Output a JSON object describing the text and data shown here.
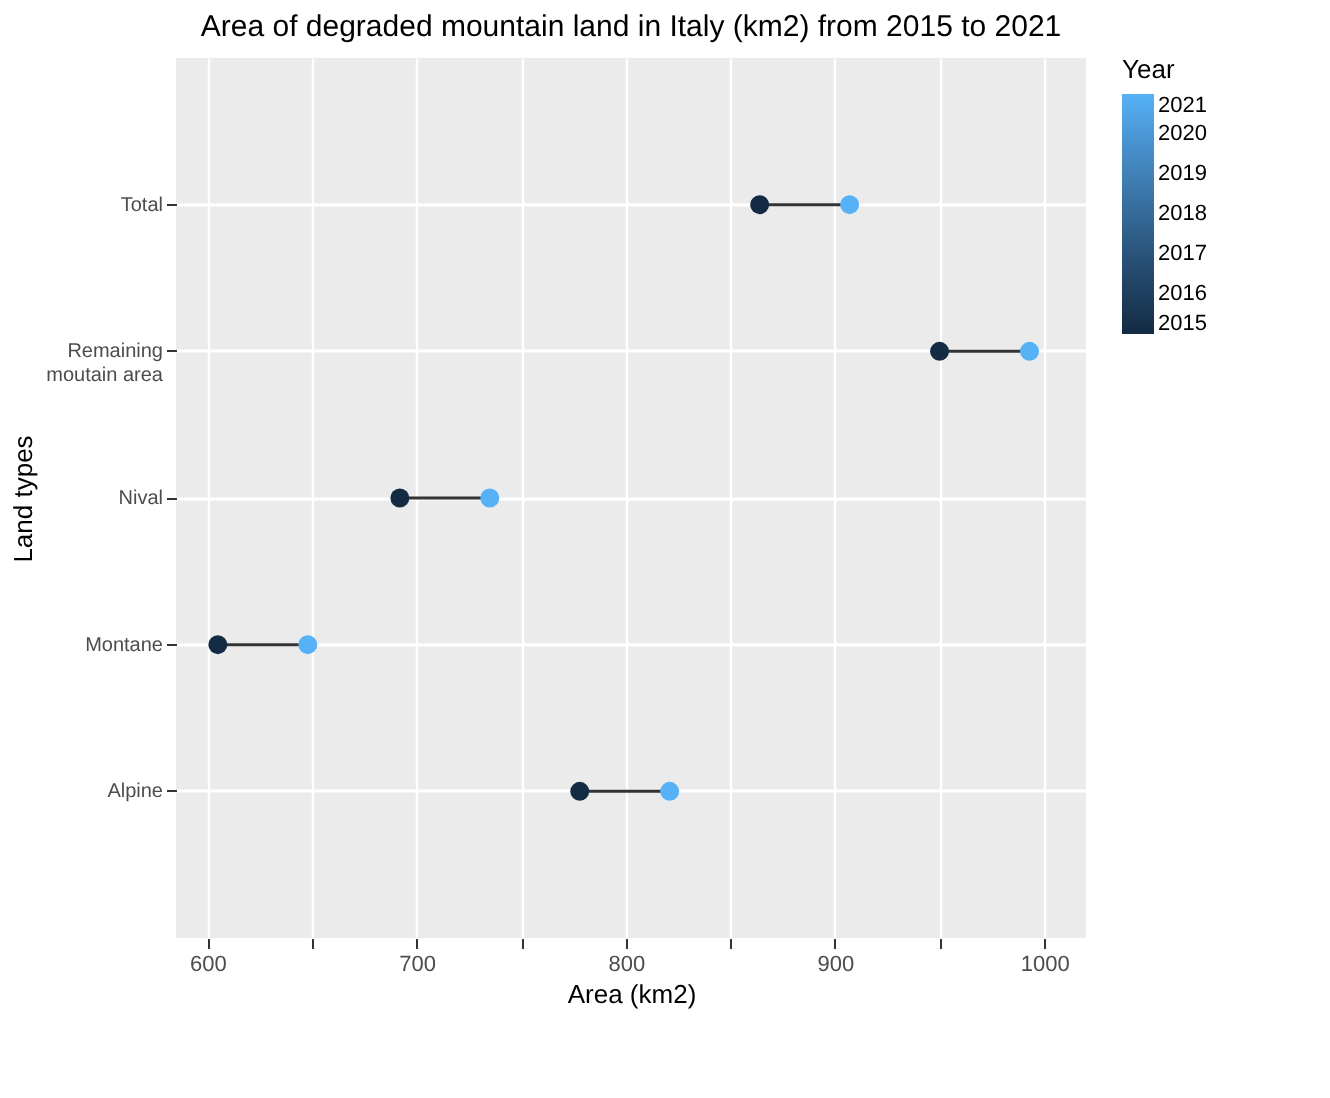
{
  "chart_data": {
    "type": "scatter",
    "title": "Area of degraded mountain land in Italy (km2) from 2015 to 2021",
    "xlabel": "Area (km2)",
    "ylabel": "Land types",
    "orientation": "horizontal",
    "categories": [
      "Total",
      "Remaining\nmoutain area",
      "Nival",
      "Montane",
      "Alpine"
    ],
    "series": [
      {
        "color": "#132b43",
        "values": [
          864,
          950,
          692,
          605,
          778
        ],
        "cvalues": [
          2015,
          2015,
          2015,
          2015,
          2015
        ]
      },
      {
        "color": "#56b1f7",
        "values": [
          907,
          993,
          735,
          648,
          821
        ],
        "cvalues": [
          2021,
          2021,
          2021,
          2021,
          2021
        ]
      }
    ],
    "xlim": [
      585,
      1020
    ],
    "xticks": [
      600,
      {
        "value": 650,
        "label": null
      },
      700,
      {
        "value": 750,
        "label": null
      },
      800,
      {
        "value": 850,
        "label": null
      },
      900,
      {
        "value": 950,
        "label": null
      },
      1000
    ],
    "legend_title": "Year",
    "clim": [
      2015,
      2021
    ],
    "cticks": [
      2015,
      2016,
      2017,
      2018,
      2019,
      2020,
      2021
    ],
    "grid": true,
    "marker": "circle"
  }
}
